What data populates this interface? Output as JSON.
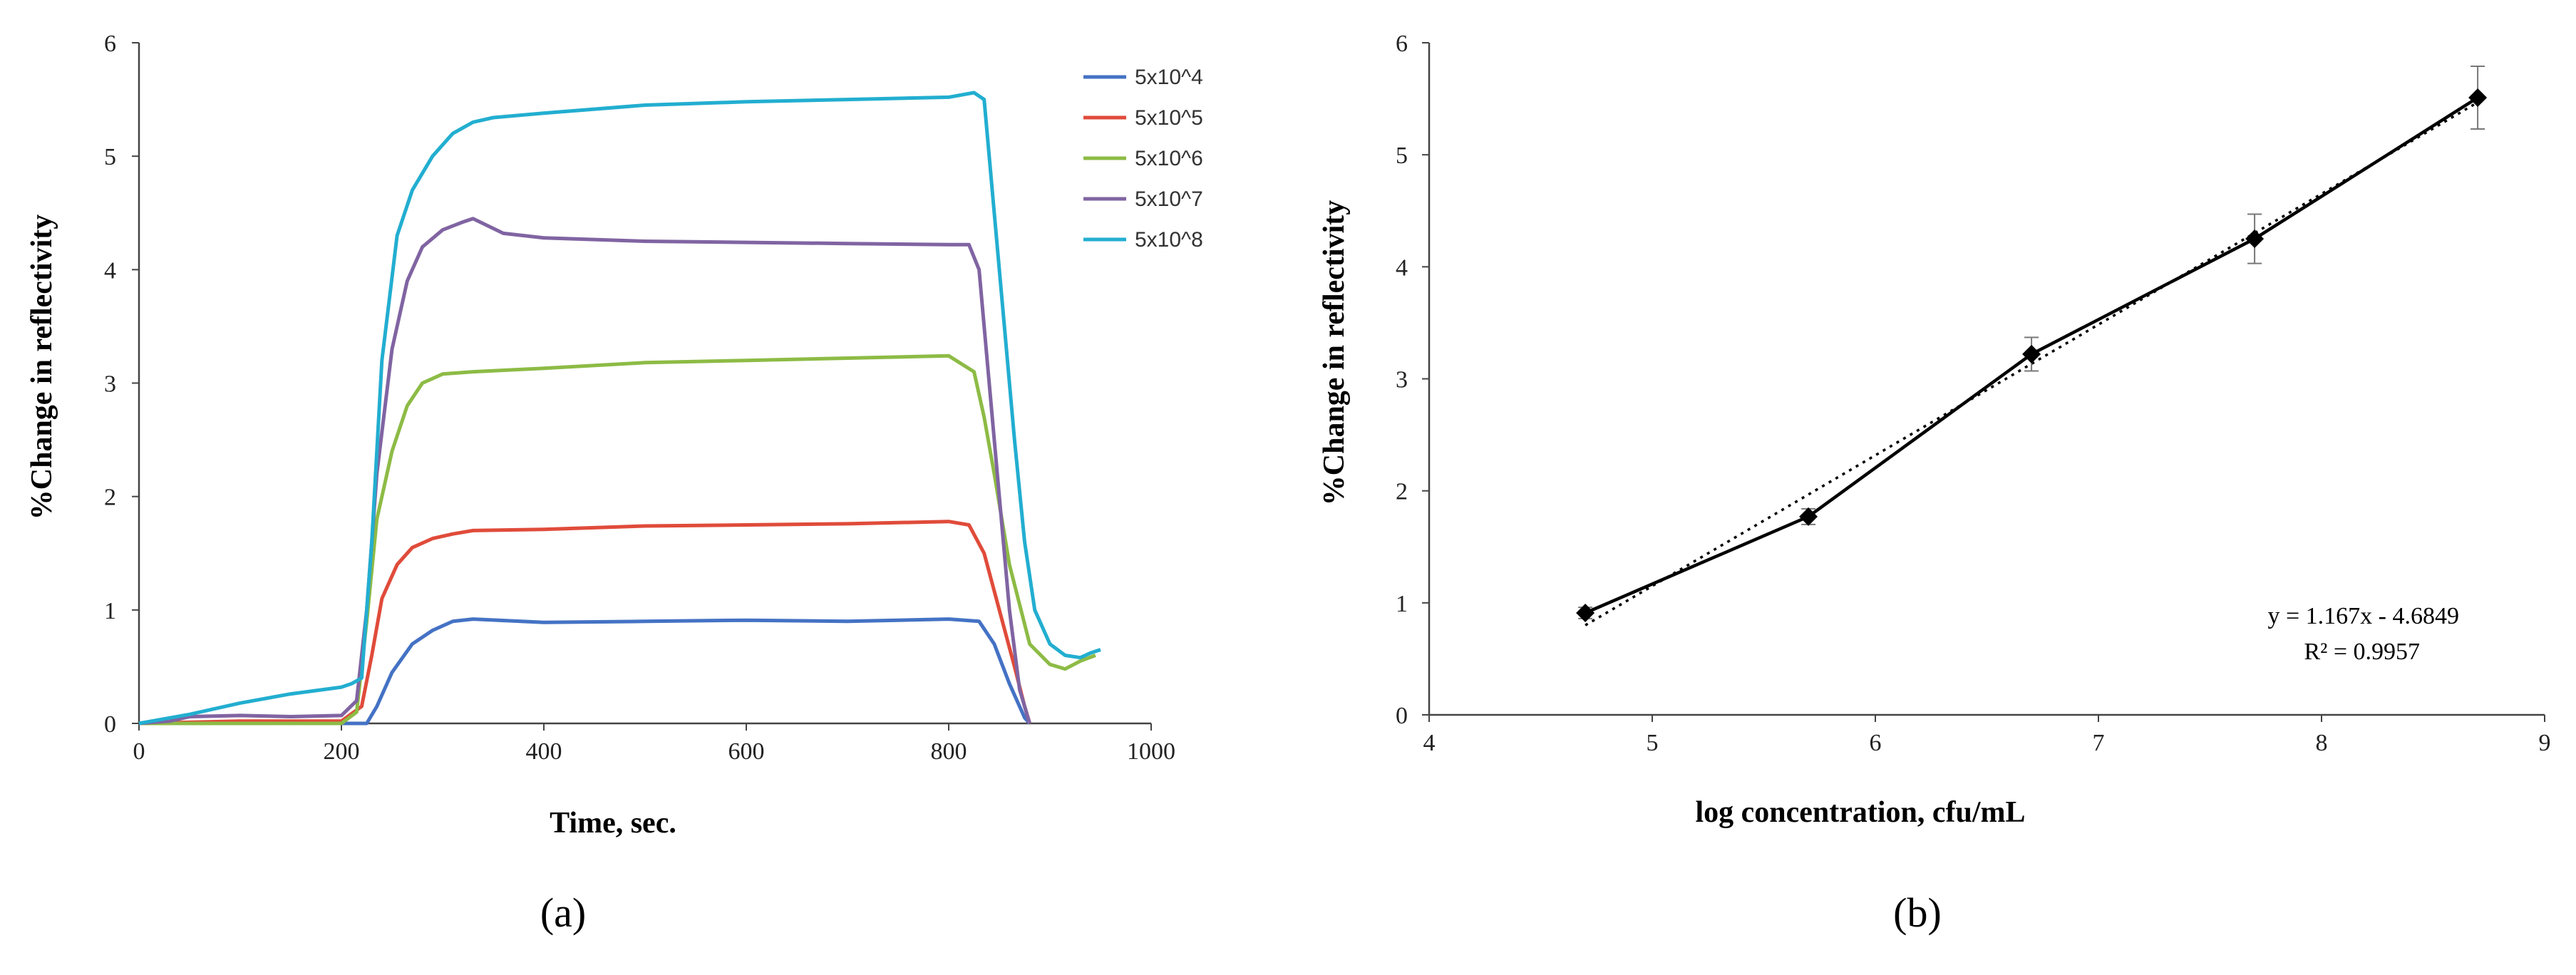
{
  "figure": {
    "panel_a_label": "(a)",
    "panel_b_label": "(b)"
  },
  "chart_data": [
    {
      "id": "a",
      "type": "line",
      "title": "",
      "xlabel": "Time, sec.",
      "ylabel": "%Change in reflectivity",
      "xlim": [
        0,
        1000
      ],
      "ylim": [
        0,
        6
      ],
      "xticks": [
        0,
        200,
        400,
        600,
        800,
        1000
      ],
      "yticks": [
        0,
        1,
        2,
        3,
        4,
        5,
        6
      ],
      "grid": false,
      "legend_position": "top-right",
      "series": [
        {
          "name": "5x10^4",
          "color": "#4472C4",
          "x": [
            0,
            100,
            200,
            225,
            235,
            250,
            270,
            290,
            310,
            330,
            400,
            500,
            600,
            700,
            800,
            830,
            845,
            860,
            875,
            880
          ],
          "y": [
            0,
            0,
            0,
            0,
            0.15,
            0.45,
            0.7,
            0.82,
            0.9,
            0.92,
            0.89,
            0.9,
            0.91,
            0.9,
            0.92,
            0.9,
            0.7,
            0.35,
            0.05,
            0
          ]
        },
        {
          "name": "5x10^5",
          "color": "#E04B3A",
          "x": [
            0,
            100,
            200,
            220,
            230,
            240,
            255,
            270,
            290,
            310,
            330,
            400,
            500,
            600,
            700,
            800,
            820,
            835,
            850,
            865,
            875,
            880
          ],
          "y": [
            0,
            0.02,
            0.02,
            0.15,
            0.6,
            1.1,
            1.4,
            1.55,
            1.63,
            1.67,
            1.7,
            1.71,
            1.74,
            1.75,
            1.76,
            1.78,
            1.75,
            1.5,
            1.0,
            0.5,
            0.15,
            0
          ]
        },
        {
          "name": "5x10^6",
          "color": "#8DBB45",
          "x": [
            0,
            100,
            200,
            215,
            225,
            235,
            250,
            265,
            280,
            300,
            330,
            400,
            500,
            600,
            700,
            800,
            825,
            835,
            845,
            860,
            880,
            900,
            915,
            930,
            945
          ],
          "y": [
            0,
            0,
            0,
            0.1,
            0.9,
            1.8,
            2.4,
            2.8,
            3.0,
            3.08,
            3.1,
            3.13,
            3.18,
            3.2,
            3.22,
            3.24,
            3.1,
            2.7,
            2.2,
            1.4,
            0.7,
            0.52,
            0.48,
            0.55,
            0.6
          ]
        },
        {
          "name": "5x10^7",
          "color": "#8064A2",
          "x": [
            0,
            30,
            50,
            100,
            150,
            200,
            215,
            225,
            235,
            250,
            265,
            280,
            300,
            320,
            330,
            360,
            400,
            500,
            600,
            700,
            800,
            820,
            830,
            840,
            850,
            860,
            870,
            880
          ],
          "y": [
            0,
            0.02,
            0.06,
            0.07,
            0.06,
            0.07,
            0.2,
            1.0,
            2.2,
            3.3,
            3.9,
            4.2,
            4.35,
            4.42,
            4.45,
            4.32,
            4.28,
            4.25,
            4.24,
            4.23,
            4.22,
            4.22,
            4.0,
            3.0,
            2.0,
            1.0,
            0.3,
            0
          ]
        },
        {
          "name": "5x10^8",
          "color": "#22AED0",
          "x": [
            0,
            50,
            100,
            150,
            200,
            210,
            220,
            230,
            240,
            255,
            270,
            290,
            310,
            330,
            350,
            400,
            500,
            600,
            700,
            800,
            825,
            835,
            845,
            855,
            865,
            875,
            885,
            900,
            915,
            930,
            940,
            950
          ],
          "y": [
            0,
            0.08,
            0.18,
            0.26,
            0.32,
            0.35,
            0.4,
            1.6,
            3.2,
            4.3,
            4.7,
            5.0,
            5.2,
            5.3,
            5.34,
            5.38,
            5.45,
            5.48,
            5.5,
            5.52,
            5.56,
            5.5,
            4.5,
            3.5,
            2.5,
            1.6,
            1.0,
            0.7,
            0.6,
            0.58,
            0.62,
            0.65
          ]
        }
      ]
    },
    {
      "id": "b",
      "type": "scatter",
      "title": "",
      "xlabel": "log concentration, cfu/mL",
      "ylabel": "%Change in reflectivity",
      "xlim": [
        4,
        9
      ],
      "ylim": [
        0,
        6
      ],
      "xticks": [
        4,
        5,
        6,
        7,
        8,
        9
      ],
      "yticks": [
        0,
        1,
        2,
        3,
        4,
        5,
        6
      ],
      "grid": false,
      "points": {
        "x": [
          4.7,
          5.7,
          6.7,
          7.7,
          8.7
        ],
        "y": [
          0.91,
          1.77,
          3.22,
          4.25,
          5.51
        ],
        "error": [
          0.05,
          0.07,
          0.15,
          0.22,
          0.28
        ]
      },
      "trendline": {
        "slope": 1.167,
        "intercept": -4.6849,
        "style": "dotted"
      },
      "annotations": {
        "equation": "y = 1.167x - 4.6849",
        "r_squared": "R² = 0.9957"
      }
    }
  ]
}
